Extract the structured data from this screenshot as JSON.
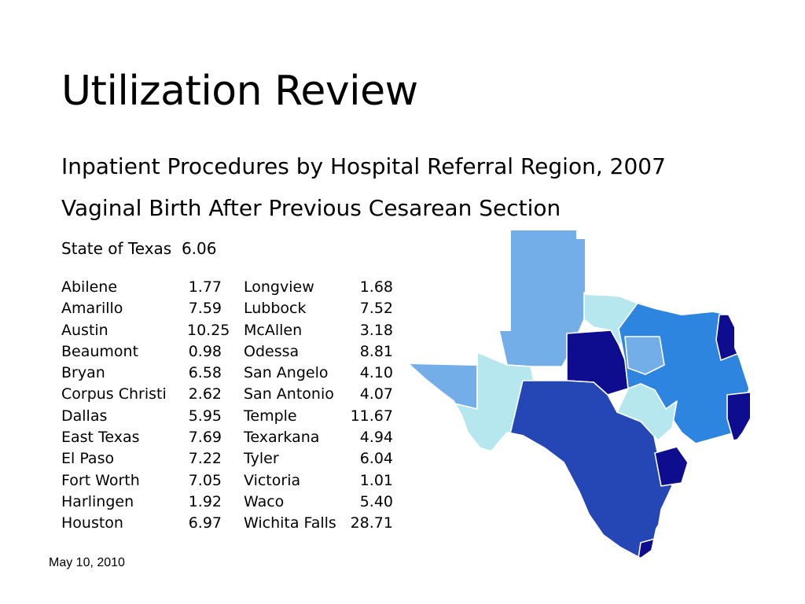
{
  "slide": {
    "title": "Utilization Review",
    "subtitle": "Inpatient Procedures by Hospital Referral Region, 2007",
    "procedure": "Vaginal Birth After Previous Cesarean Section",
    "state_label": "State of Texas",
    "state_value": "6.06",
    "date": "May 10, 2010"
  },
  "regions_left": [
    {
      "name": "Abilene",
      "value": "1.77"
    },
    {
      "name": "Amarillo",
      "value": "7.59"
    },
    {
      "name": "Austin",
      "value": "10.25"
    },
    {
      "name": "Beaumont",
      "value": "0.98"
    },
    {
      "name": "Bryan",
      "value": "6.58"
    },
    {
      "name": "Corpus Christi",
      "value": "2.62"
    },
    {
      "name": "Dallas",
      "value": "5.95"
    },
    {
      "name": "East Texas",
      "value": "7.69"
    },
    {
      "name": "El Paso",
      "value": "7.22"
    },
    {
      "name": "Fort Worth",
      "value": "7.05"
    },
    {
      "name": "Harlingen",
      "value": "1.92"
    },
    {
      "name": "Houston",
      "value": "6.97"
    }
  ],
  "regions_right": [
    {
      "name": "Longview",
      "value": "1.68"
    },
    {
      "name": "Lubbock",
      "value": "7.52"
    },
    {
      "name": "McAllen",
      "value": "3.18"
    },
    {
      "name": "Odessa",
      "value": "8.81"
    },
    {
      "name": "San Angelo",
      "value": "4.10"
    },
    {
      "name": "San Antonio",
      "value": "4.07"
    },
    {
      "name": "Temple",
      "value": "11.67"
    },
    {
      "name": "Texarkana",
      "value": "4.94"
    },
    {
      "name": "Tyler",
      "value": "6.04"
    },
    {
      "name": "Victoria",
      "value": "1.01"
    },
    {
      "name": "Waco",
      "value": "5.40"
    },
    {
      "name": "Wichita Falls",
      "value": "28.71"
    }
  ],
  "map": {
    "colors": {
      "lightest": "#b6e7ee",
      "light": "#74aee8",
      "medium": "#2e85e0",
      "dark": "#2546b5",
      "darkest": "#0f0d8f",
      "border": "#ffffff"
    }
  }
}
